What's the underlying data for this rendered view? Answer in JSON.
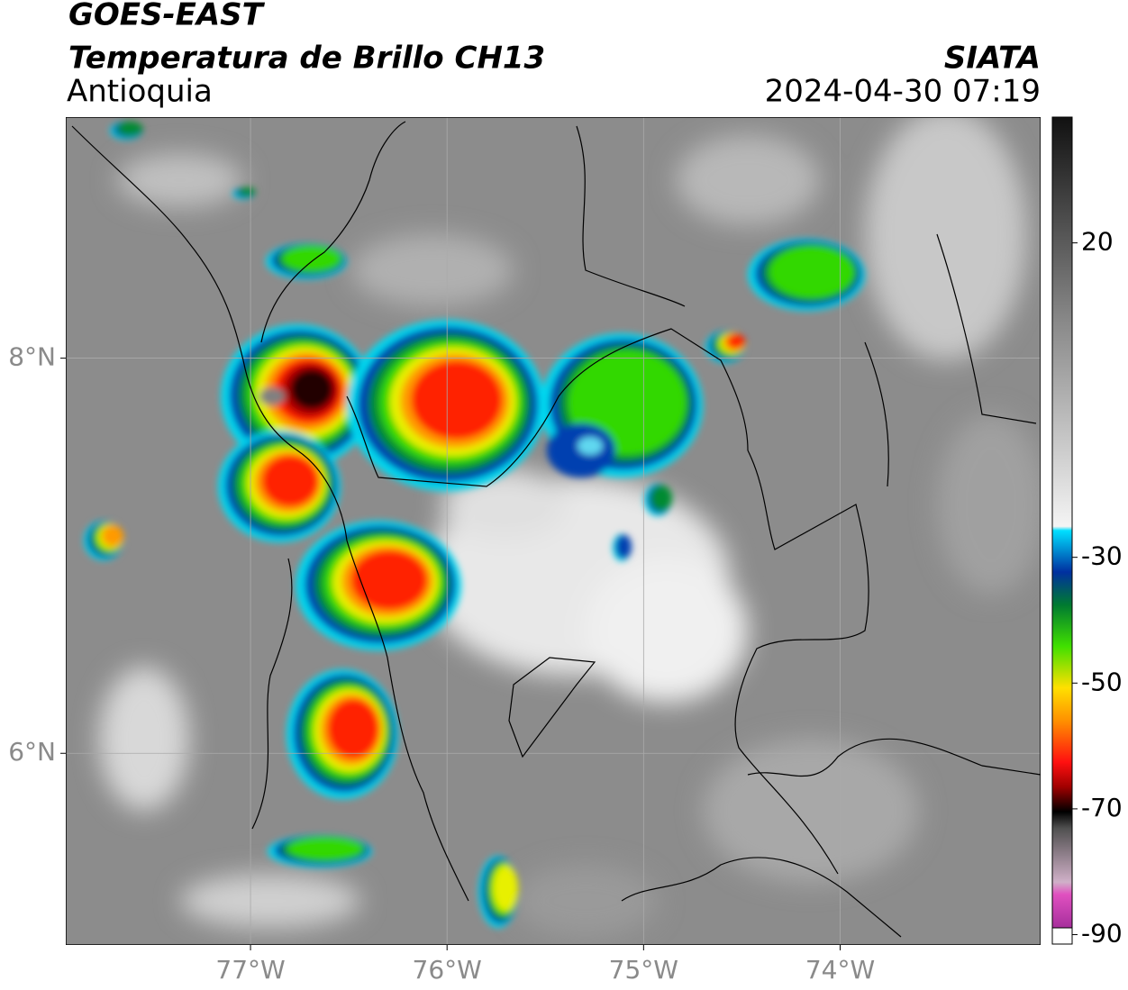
{
  "header": {
    "title": "GOES-EAST",
    "subtitle": "Temperatura de Brillo CH13",
    "region": "Antioquia",
    "source": "SIATA",
    "datetime": "2024-04-30 07:19"
  },
  "map": {
    "xlim": [
      -77.94,
      -72.98
    ],
    "ylim": [
      5.03,
      9.22
    ],
    "grid": true,
    "xticks": [
      {
        "value": -77,
        "label": "77°W"
      },
      {
        "value": -76,
        "label": "76°W"
      },
      {
        "value": -75,
        "label": "75°W"
      },
      {
        "value": -74,
        "label": "74°W"
      }
    ],
    "yticks": [
      {
        "value": 8,
        "label": "8°N"
      },
      {
        "value": 6,
        "label": "6°N"
      }
    ]
  },
  "colorbar": {
    "lim": [
      -91.5,
      40
    ],
    "ticks": [
      20,
      -30,
      -50,
      -70,
      -90
    ]
  }
}
